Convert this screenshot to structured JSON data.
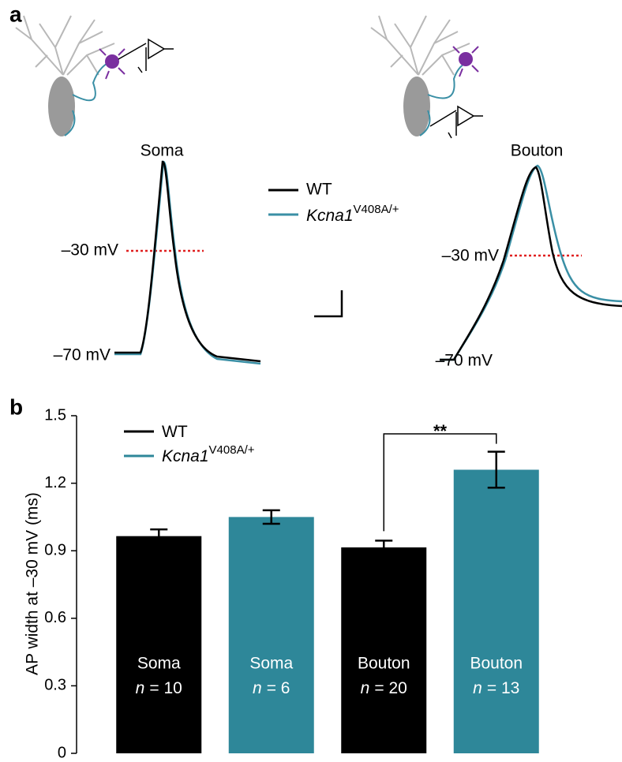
{
  "panel_a": {
    "label": "a",
    "soma_title": "Soma",
    "bouton_title": "Bouton",
    "soma_levels": [
      "–30 mV",
      "–70 mV"
    ],
    "bouton_levels": [
      "–30 mV",
      "–70 mV"
    ],
    "legend": [
      {
        "name": "WT"
      },
      {
        "name": "Kcna1",
        "superscript": "V408A/+"
      }
    ]
  },
  "chart_data": {
    "type": "bar",
    "panel_label": "b",
    "ylabel": "AP width at –30 mV (ms)",
    "categories": [
      null,
      null,
      null,
      null
    ],
    "series": [
      {
        "name": "WT",
        "color": "#000000",
        "values": [
          0.965,
          null,
          0.915,
          null
        ],
        "errors": [
          0.03,
          null,
          0.03,
          null
        ]
      },
      {
        "name": "Kcna1",
        "superscript": "V408A/+",
        "color": "#2e8799",
        "values": [
          null,
          1.05,
          null,
          1.26
        ],
        "errors": [
          null,
          0.03,
          null,
          0.08
        ]
      }
    ],
    "bar_labels": [
      [
        "Soma",
        "n",
        "= 10"
      ],
      [
        "Soma",
        "n",
        "= 6"
      ],
      [
        "Bouton",
        "n",
        "= 20"
      ],
      [
        "Bouton",
        "n",
        "= 13"
      ]
    ],
    "significance": {
      "text": "**",
      "between": [
        2,
        3
      ]
    },
    "ylim": [
      0,
      1.5
    ],
    "yticks": [
      0,
      0.3,
      0.6,
      0.9,
      1.2,
      1.5
    ],
    "grid": false
  }
}
